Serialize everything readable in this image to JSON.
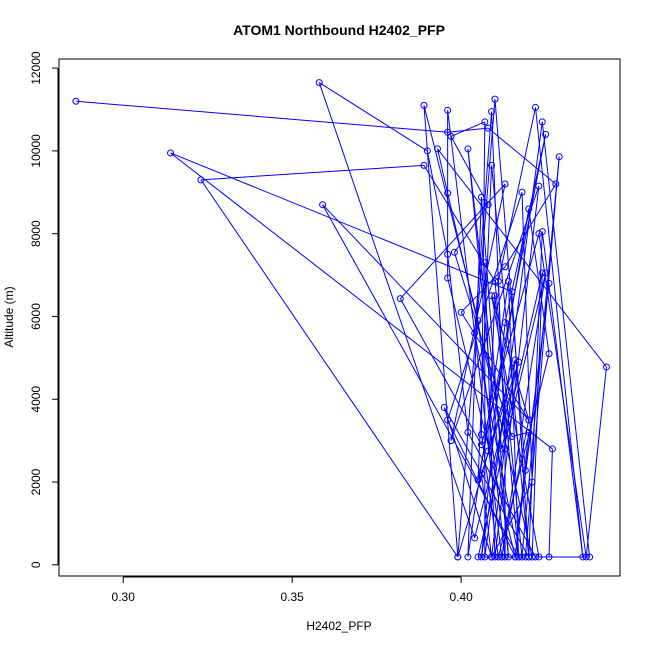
{
  "chart_data": {
    "type": "scatter",
    "title": "ATOM1 Northbound H2402_PFP",
    "xlabel": "H2402_PFP",
    "ylabel": "Altitude (m)",
    "xlim": [
      0.281,
      0.447
    ],
    "ylim": [
      -270,
      12220
    ],
    "xticks": [
      0.3,
      0.35,
      0.4
    ],
    "xtick_labels": [
      "0.30",
      "0.35",
      "0.40"
    ],
    "yticks": [
      0,
      2000,
      4000,
      6000,
      8000,
      10000,
      12000
    ],
    "ytick_labels": [
      "0",
      "2000",
      "4000",
      "6000",
      "8000",
      "10000",
      "12000"
    ],
    "grid": false,
    "legend": "none",
    "color": "#0000ff",
    "marker": "open-circle",
    "connected": true,
    "points": [
      [
        0.286,
        11200
      ],
      [
        0.396,
        10450
      ],
      [
        0.408,
        10550
      ],
      [
        0.428,
        9200
      ],
      [
        0.413,
        7200
      ],
      [
        0.4,
        6100
      ],
      [
        0.42,
        3500
      ],
      [
        0.412,
        190
      ],
      [
        0.409,
        190
      ],
      [
        0.406,
        2200
      ],
      [
        0.417,
        4900
      ],
      [
        0.404,
        650
      ],
      [
        0.358,
        11650
      ],
      [
        0.39,
        10000
      ],
      [
        0.396,
        7500
      ],
      [
        0.402,
        3200
      ],
      [
        0.422,
        190
      ],
      [
        0.426,
        190
      ],
      [
        0.427,
        2800
      ],
      [
        0.314,
        9950
      ],
      [
        0.415,
        6600
      ],
      [
        0.42,
        190
      ],
      [
        0.395,
        3800
      ],
      [
        0.409,
        190
      ],
      [
        0.416,
        4950
      ],
      [
        0.399,
        190
      ],
      [
        0.323,
        9300
      ],
      [
        0.389,
        9650
      ],
      [
        0.41,
        6850
      ],
      [
        0.418,
        190
      ],
      [
        0.429,
        9860
      ],
      [
        0.419,
        190
      ],
      [
        0.405,
        190
      ],
      [
        0.425,
        7050
      ],
      [
        0.412,
        190
      ],
      [
        0.396,
        10980
      ],
      [
        0.396,
        6930
      ],
      [
        0.416,
        190
      ],
      [
        0.426,
        6800
      ],
      [
        0.419,
        2280
      ],
      [
        0.41,
        11250
      ],
      [
        0.399,
        190
      ],
      [
        0.389,
        11100
      ],
      [
        0.405,
        5900
      ],
      [
        0.413,
        190
      ],
      [
        0.413,
        3900
      ],
      [
        0.406,
        190
      ],
      [
        0.413,
        5850
      ],
      [
        0.425,
        10400
      ],
      [
        0.405,
        2050
      ],
      [
        0.409,
        9650
      ],
      [
        0.42,
        190
      ],
      [
        0.424,
        8050
      ],
      [
        0.436,
        190
      ],
      [
        0.422,
        11050
      ],
      [
        0.411,
        6850
      ],
      [
        0.413,
        2800
      ],
      [
        0.409,
        10950
      ],
      [
        0.404,
        5600
      ],
      [
        0.417,
        190
      ],
      [
        0.359,
        8700
      ],
      [
        0.42,
        3500
      ],
      [
        0.409,
        6500
      ],
      [
        0.423,
        190
      ],
      [
        0.438,
        190
      ],
      [
        0.424,
        10700
      ],
      [
        0.407,
        190
      ],
      [
        0.407,
        7300
      ],
      [
        0.41,
        190
      ],
      [
        0.423,
        9150
      ],
      [
        0.397,
        3000
      ],
      [
        0.413,
        9200
      ],
      [
        0.382,
        6430
      ],
      [
        0.406,
        2900
      ],
      [
        0.423,
        8000
      ],
      [
        0.437,
        190
      ],
      [
        0.443,
        4780
      ],
      [
        0.393,
        10050
      ],
      [
        0.396,
        8980
      ],
      [
        0.421,
        190
      ],
      [
        0.424,
        7050
      ],
      [
        0.412,
        2800
      ],
      [
        0.402,
        10050
      ],
      [
        0.414,
        190
      ],
      [
        0.406,
        8880
      ],
      [
        0.402,
        190
      ],
      [
        0.414,
        6850
      ],
      [
        0.417,
        190
      ],
      [
        0.41,
        6500
      ],
      [
        0.408,
        2750
      ],
      [
        0.42,
        8600
      ],
      [
        0.426,
        5100
      ],
      [
        0.411,
        190
      ],
      [
        0.406,
        3150
      ],
      [
        0.407,
        10700
      ],
      [
        0.397,
        10350
      ],
      [
        0.408,
        8700
      ],
      [
        0.398,
        7550
      ],
      [
        0.415,
        3100
      ],
      [
        0.42,
        3200
      ],
      [
        0.416,
        190
      ],
      [
        0.396,
        3500
      ],
      [
        0.418,
        9000
      ],
      [
        0.421,
        2000
      ],
      [
        0.409,
        190
      ]
    ]
  }
}
